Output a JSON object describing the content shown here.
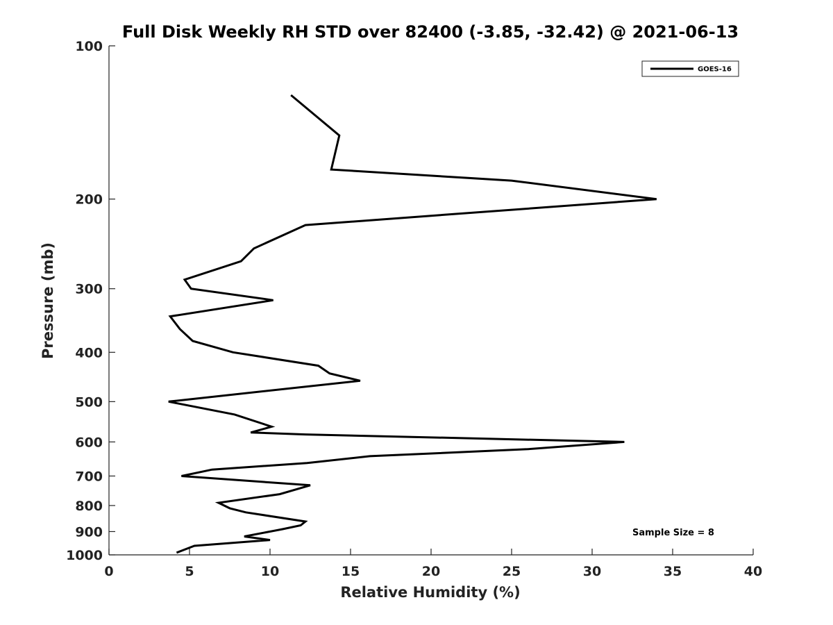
{
  "chart_data": {
    "type": "line",
    "title": "Full Disk Weekly RH STD over 82400 (-3.85, -32.42) @ 2021-06-13",
    "xlabel": "Relative Humidity (%)",
    "ylabel": "Pressure (mb)",
    "xlim": [
      0,
      40
    ],
    "ylim": [
      100,
      1000
    ],
    "yscale": "log",
    "y_reversed": true,
    "x_ticks": [
      0,
      5,
      10,
      15,
      20,
      25,
      30,
      35,
      40
    ],
    "y_ticks": [
      100,
      200,
      300,
      400,
      500,
      600,
      700,
      800,
      900,
      1000
    ],
    "grid": false,
    "legend_position": "top-right",
    "annotation": "Sample Size = 8",
    "series": [
      {
        "name": "GOES-16",
        "color": "#000000",
        "points": [
          [
            11.3,
            125
          ],
          [
            14.3,
            150
          ],
          [
            13.8,
            175
          ],
          [
            25.0,
            184
          ],
          [
            34.0,
            200
          ],
          [
            12.2,
            225
          ],
          [
            9.0,
            250
          ],
          [
            8.2,
            265
          ],
          [
            4.7,
            288
          ],
          [
            5.1,
            300
          ],
          [
            10.2,
            316
          ],
          [
            3.8,
            340
          ],
          [
            4.4,
            360
          ],
          [
            5.2,
            380
          ],
          [
            7.7,
            400
          ],
          [
            13.0,
            425
          ],
          [
            13.7,
            440
          ],
          [
            15.6,
            455
          ],
          [
            3.7,
            500
          ],
          [
            7.8,
            530
          ],
          [
            10.1,
            560
          ],
          [
            8.8,
            575
          ],
          [
            12.2,
            580
          ],
          [
            32.0,
            600
          ],
          [
            26.0,
            620
          ],
          [
            16.2,
            640
          ],
          [
            12.3,
            660
          ],
          [
            6.4,
            680
          ],
          [
            4.5,
            700
          ],
          [
            12.5,
            730
          ],
          [
            10.6,
            760
          ],
          [
            6.8,
            790
          ],
          [
            7.5,
            810
          ],
          [
            8.5,
            825
          ],
          [
            12.2,
            860
          ],
          [
            11.9,
            875
          ],
          [
            10.8,
            890
          ],
          [
            8.4,
            920
          ],
          [
            10.0,
            935
          ],
          [
            5.3,
            960
          ],
          [
            4.2,
            990
          ]
        ]
      }
    ]
  }
}
